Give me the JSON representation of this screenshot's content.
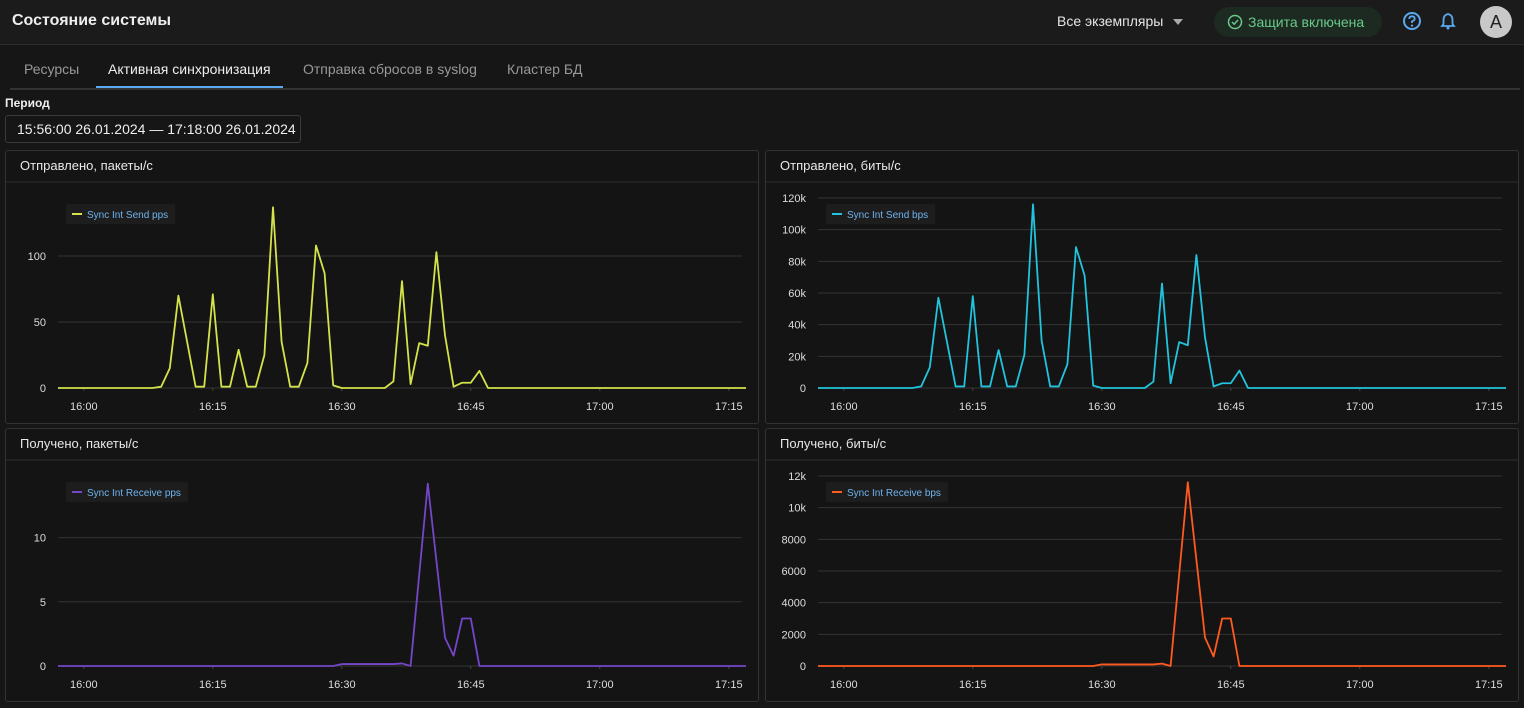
{
  "header": {
    "title": "Состояние системы",
    "instances": "Все экземпляры",
    "protection": "Защита включена",
    "avatar": "A"
  },
  "tabs": [
    {
      "label": "Ресурсы",
      "active": false
    },
    {
      "label": "Активная синхронизация",
      "active": true
    },
    {
      "label": "Отправка сбросов в syslog",
      "active": false
    },
    {
      "label": "Кластер БД",
      "active": false
    }
  ],
  "period": {
    "label": "Период",
    "value": "15:56:00 26.01.2024 — 17:18:00 26.01.2024"
  },
  "chart_data": [
    {
      "type": "line",
      "title": "Отправлено, пакеты/с",
      "legend": "top-left",
      "grid": true,
      "x": [
        "15:57",
        "16:08",
        "16:09",
        "16:10",
        "16:11",
        "16:13",
        "16:14",
        "16:15",
        "16:16",
        "16:17",
        "16:18",
        "16:19",
        "16:20",
        "16:21",
        "16:22",
        "16:23",
        "16:24",
        "16:25",
        "16:26",
        "16:27",
        "16:28",
        "16:29",
        "16:30",
        "16:35",
        "16:36",
        "16:37",
        "16:38",
        "16:39",
        "16:40",
        "16:41",
        "16:42",
        "16:43",
        "16:44",
        "16:45",
        "16:46",
        "16:47",
        "17:17"
      ],
      "series": [
        {
          "name": "Sync Int Send pps",
          "color": "#d4e34a",
          "values": [
            0,
            0,
            1,
            15,
            70,
            1,
            1,
            71,
            1,
            1,
            29,
            1,
            1,
            25,
            137,
            35,
            1,
            1,
            19,
            108,
            87,
            2,
            0,
            0,
            5,
            81,
            3,
            34,
            32,
            103,
            40,
            1,
            4,
            4,
            13,
            0,
            0
          ]
        }
      ],
      "xlim": [
        "15:57",
        "17:17"
      ],
      "xticks": [
        "16:00",
        "16:15",
        "16:30",
        "16:45",
        "17:00",
        "17:15"
      ],
      "ylim": [
        0,
        144
      ],
      "yticks": [
        0,
        50,
        100
      ]
    },
    {
      "type": "line",
      "title": "Отправлено, биты/с",
      "legend": "top-left",
      "grid": true,
      "x": [
        "15:57",
        "16:08",
        "16:09",
        "16:10",
        "16:11",
        "16:13",
        "16:14",
        "16:15",
        "16:16",
        "16:17",
        "16:18",
        "16:19",
        "16:20",
        "16:21",
        "16:22",
        "16:23",
        "16:24",
        "16:25",
        "16:26",
        "16:27",
        "16:28",
        "16:29",
        "16:30",
        "16:35",
        "16:36",
        "16:37",
        "16:38",
        "16:39",
        "16:40",
        "16:41",
        "16:42",
        "16:43",
        "16:44",
        "16:45",
        "16:46",
        "16:47",
        "17:17"
      ],
      "series": [
        {
          "name": "Sync Int Send bps",
          "color": "#22c3dc",
          "values": [
            0,
            0,
            1000,
            13000,
            57000,
            1000,
            1000,
            58000,
            1000,
            1000,
            24000,
            1000,
            1000,
            21000,
            116000,
            30000,
            1000,
            1000,
            15000,
            89000,
            71000,
            1500,
            0,
            0,
            4000,
            66000,
            3000,
            29000,
            27000,
            84000,
            32000,
            1000,
            3000,
            3000,
            11000,
            0,
            0
          ]
        }
      ],
      "xlim": [
        "15:57",
        "17:17"
      ],
      "xticks": [
        "16:00",
        "16:15",
        "16:30",
        "16:45",
        "17:00",
        "17:15"
      ],
      "ylim": [
        0,
        120000
      ],
      "yticks": [
        0,
        {
          "value": 20000,
          "label": "20k"
        },
        {
          "value": 40000,
          "label": "40k"
        },
        {
          "value": 60000,
          "label": "60k"
        },
        {
          "value": 80000,
          "label": "80k"
        },
        {
          "value": 100000,
          "label": "100k"
        },
        {
          "value": 120000,
          "label": "120k"
        }
      ]
    },
    {
      "type": "line",
      "title": "Получено, пакеты/с",
      "legend": "top-left",
      "grid": true,
      "x": [
        "15:57",
        "16:29",
        "16:30",
        "16:36",
        "16:37",
        "16:38",
        "16:40",
        "16:42",
        "16:43",
        "16:44",
        "16:45",
        "16:46",
        "17:17"
      ],
      "series": [
        {
          "name": "Sync Int Receive pps",
          "color": "#7446c8",
          "values": [
            0,
            0,
            0.15,
            0.15,
            0.2,
            0,
            14.2,
            2.2,
            0.8,
            3.7,
            3.7,
            0,
            0
          ]
        }
      ],
      "xlim": [
        "15:57",
        "17:17"
      ],
      "xticks": [
        "16:00",
        "16:15",
        "16:30",
        "16:45",
        "17:00",
        "17:15"
      ],
      "ylim": [
        0,
        14.8
      ],
      "yticks": [
        0,
        5,
        10
      ]
    },
    {
      "type": "line",
      "title": "Получено, биты/с",
      "legend": "top-left",
      "grid": true,
      "x": [
        "15:57",
        "16:29",
        "16:30",
        "16:36",
        "16:37",
        "16:38",
        "16:40",
        "16:42",
        "16:43",
        "16:44",
        "16:45",
        "16:46",
        "17:17"
      ],
      "series": [
        {
          "name": "Sync Int Receive bps",
          "color": "#ff5a1f",
          "values": [
            0,
            0,
            100,
            100,
            150,
            0,
            11600,
            1800,
            600,
            3000,
            3000,
            0,
            0
          ]
        }
      ],
      "xlim": [
        "15:57",
        "17:17"
      ],
      "xticks": [
        "16:00",
        "16:15",
        "16:30",
        "16:45",
        "17:00",
        "17:15"
      ],
      "ylim": [
        0,
        12000
      ],
      "yticks": [
        0,
        2000,
        4000,
        6000,
        8000,
        {
          "value": 10000,
          "label": "10k"
        },
        {
          "value": 12000,
          "label": "12k"
        }
      ]
    }
  ]
}
